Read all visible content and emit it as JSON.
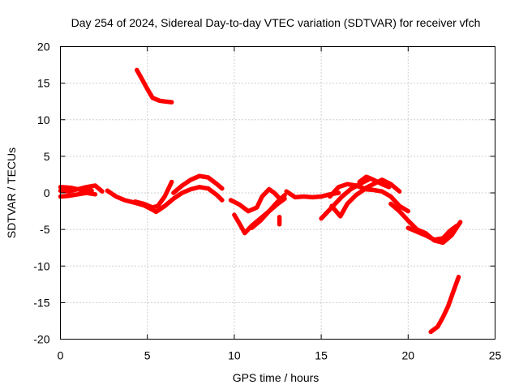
{
  "chart_data": {
    "type": "line",
    "title": "Day 254 of 2024, Sidereal Day-to-day VTEC variation (SDTVAR) for receiver vfch",
    "xlabel": "GPS time / hours",
    "ylabel": "SDTVAR / TECUs",
    "xlim": [
      0,
      25
    ],
    "ylim": [
      -20,
      20
    ],
    "xticks": [
      0,
      5,
      10,
      15,
      20,
      25
    ],
    "yticks": [
      -20,
      -15,
      -10,
      -5,
      0,
      5,
      10,
      15,
      20
    ],
    "grid": true,
    "series_color": "#ff0000",
    "series": [
      {
        "name": "s1",
        "points": [
          [
            0,
            0.3
          ],
          [
            0.5,
            0.2
          ],
          [
            1,
            0.5
          ],
          [
            1.5,
            0.8
          ],
          [
            2,
            1.0
          ],
          [
            2.4,
            0.2
          ]
        ]
      },
      {
        "name": "s2",
        "points": [
          [
            0,
            -0.5
          ],
          [
            0.5,
            -0.4
          ],
          [
            1,
            -0.2
          ],
          [
            1.5,
            0.0
          ],
          [
            2,
            -0.2
          ]
        ]
      },
      {
        "name": "s3",
        "points": [
          [
            0,
            0.8
          ],
          [
            0.6,
            0.7
          ],
          [
            1.2,
            0.4
          ],
          [
            1.8,
            0.3
          ]
        ]
      },
      {
        "name": "s4",
        "points": [
          [
            2.7,
            0.3
          ],
          [
            3.2,
            -0.5
          ],
          [
            3.7,
            -1.0
          ],
          [
            4.2,
            -1.3
          ],
          [
            4.8,
            -1.7
          ],
          [
            5.3,
            -2.3
          ]
        ]
      },
      {
        "name": "s5",
        "points": [
          [
            4.3,
            -1.2
          ],
          [
            4.8,
            -1.5
          ],
          [
            5.3,
            -2.0
          ],
          [
            5.6,
            -1.8
          ],
          [
            6.0,
            -0.5
          ],
          [
            6.4,
            1.5
          ]
        ]
      },
      {
        "name": "s6",
        "points": [
          [
            4.4,
            16.8
          ],
          [
            4.7,
            15.5
          ],
          [
            5.0,
            14.2
          ],
          [
            5.3,
            13.0
          ],
          [
            5.7,
            12.6
          ],
          [
            6.0,
            12.5
          ],
          [
            6.4,
            12.4
          ]
        ]
      },
      {
        "name": "s7",
        "points": [
          [
            5.0,
            -1.8
          ],
          [
            5.5,
            -2.6
          ],
          [
            6.0,
            -1.8
          ],
          [
            6.5,
            -0.8
          ],
          [
            7.0,
            0.0
          ],
          [
            7.5,
            0.5
          ],
          [
            8.0,
            0.8
          ],
          [
            8.5,
            0.6
          ],
          [
            9.0,
            -0.3
          ],
          [
            9.3,
            -1.0
          ]
        ]
      },
      {
        "name": "s8",
        "points": [
          [
            6.5,
            0.0
          ],
          [
            7.0,
            1.0
          ],
          [
            7.5,
            1.8
          ],
          [
            8.0,
            2.3
          ],
          [
            8.5,
            2.1
          ],
          [
            9.0,
            1.2
          ],
          [
            9.3,
            0.6
          ]
        ]
      },
      {
        "name": "s9",
        "points": [
          [
            10.0,
            -3.0
          ],
          [
            10.3,
            -4.2
          ],
          [
            10.6,
            -5.5
          ],
          [
            11.0,
            -4.5
          ],
          [
            11.5,
            -3.5
          ],
          [
            12.0,
            -2.5
          ],
          [
            12.5,
            -1.5
          ],
          [
            12.9,
            -0.8
          ]
        ]
      },
      {
        "name": "s10",
        "points": [
          [
            9.8,
            -1.0
          ],
          [
            10.3,
            -1.6
          ],
          [
            10.8,
            -2.5
          ],
          [
            11.3,
            -2.0
          ],
          [
            11.6,
            -0.5
          ],
          [
            12.0,
            0.5
          ],
          [
            12.3,
            0.0
          ],
          [
            12.7,
            -1.0
          ]
        ]
      },
      {
        "name": "s11",
        "points": [
          [
            11.0,
            -4.8
          ],
          [
            11.5,
            -3.8
          ],
          [
            12.0,
            -2.5
          ],
          [
            12.5,
            -1.2
          ],
          [
            12.9,
            -0.3
          ]
        ]
      },
      {
        "name": "s12",
        "points": [
          [
            12.6,
            -3.3
          ],
          [
            12.6,
            -4.3
          ]
        ]
      },
      {
        "name": "s13",
        "points": [
          [
            13.0,
            0.2
          ],
          [
            13.5,
            -0.6
          ],
          [
            14.0,
            -0.5
          ],
          [
            14.5,
            -0.6
          ],
          [
            15.0,
            -0.5
          ],
          [
            15.5,
            -0.2
          ],
          [
            16.0,
            0.0
          ]
        ]
      },
      {
        "name": "s14",
        "points": [
          [
            15.0,
            -3.5
          ],
          [
            15.4,
            -2.5
          ],
          [
            15.8,
            -1.5
          ],
          [
            16.2,
            -0.5
          ],
          [
            16.7,
            0.5
          ],
          [
            17.2,
            1.2
          ],
          [
            17.7,
            1.8
          ]
        ]
      },
      {
        "name": "s15",
        "points": [
          [
            15.5,
            -0.5
          ],
          [
            16.0,
            0.8
          ],
          [
            16.5,
            1.2
          ],
          [
            17.0,
            1.0
          ],
          [
            17.5,
            0.6
          ],
          [
            18.0,
            1.2
          ],
          [
            18.5,
            1.8
          ],
          [
            19.0,
            1.2
          ],
          [
            19.5,
            0.2
          ]
        ]
      },
      {
        "name": "s16",
        "points": [
          [
            15.6,
            -1.8
          ],
          [
            16.1,
            -3.2
          ],
          [
            16.5,
            -1.5
          ],
          [
            17.0,
            -0.3
          ],
          [
            17.5,
            0.5
          ],
          [
            18.0,
            0.4
          ],
          [
            18.5,
            0.2
          ],
          [
            19.0,
            -0.5
          ],
          [
            19.5,
            -1.8
          ],
          [
            20.0,
            -2.5
          ]
        ]
      },
      {
        "name": "s17",
        "points": [
          [
            17.2,
            1.5
          ],
          [
            17.6,
            2.2
          ],
          [
            18.0,
            1.8
          ],
          [
            18.5,
            1.2
          ],
          [
            18.9,
            0.8
          ]
        ]
      },
      {
        "name": "s18",
        "points": [
          [
            19.0,
            -1.5
          ],
          [
            19.5,
            -2.5
          ],
          [
            20.0,
            -3.8
          ],
          [
            20.5,
            -5.0
          ],
          [
            21.0,
            -5.5
          ],
          [
            21.5,
            -6.5
          ],
          [
            22.0,
            -6.8
          ],
          [
            22.5,
            -5.8
          ],
          [
            23.0,
            -4.0
          ]
        ]
      },
      {
        "name": "s19",
        "points": [
          [
            20.0,
            -4.8
          ],
          [
            20.5,
            -5.3
          ],
          [
            21.0,
            -5.8
          ],
          [
            21.5,
            -6.4
          ],
          [
            22.0,
            -6.2
          ],
          [
            22.4,
            -5.2
          ],
          [
            22.8,
            -4.5
          ]
        ]
      },
      {
        "name": "s20",
        "points": [
          [
            21.3,
            -19.0
          ],
          [
            21.7,
            -18.3
          ],
          [
            22.0,
            -17.0
          ],
          [
            22.3,
            -15.5
          ],
          [
            22.6,
            -13.5
          ],
          [
            22.9,
            -11.5
          ]
        ]
      }
    ]
  }
}
